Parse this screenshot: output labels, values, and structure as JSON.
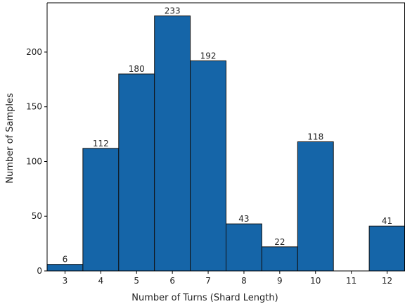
{
  "chart_data": {
    "type": "bar",
    "title": "",
    "xlabel": "Number of Turns (Shard Length)",
    "ylabel": "Number of Samples",
    "categories": [
      "3",
      "4",
      "5",
      "6",
      "7",
      "8",
      "9",
      "10",
      "11",
      "12"
    ],
    "values": [
      6,
      112,
      180,
      233,
      192,
      43,
      22,
      118,
      0,
      41
    ],
    "data_labels": [
      "6",
      "112",
      "180",
      "233",
      "192",
      "43",
      "22",
      "118",
      "",
      "41"
    ],
    "xlim": [
      2.5,
      12.5
    ],
    "ylim": [
      0,
      245
    ],
    "yticks": [
      0,
      50,
      100,
      150,
      200
    ],
    "ytick_labels": [
      "0",
      "50",
      "100",
      "150",
      "200"
    ],
    "grid": false,
    "bar_color": "#1565a8",
    "edge_color": "#111111"
  }
}
